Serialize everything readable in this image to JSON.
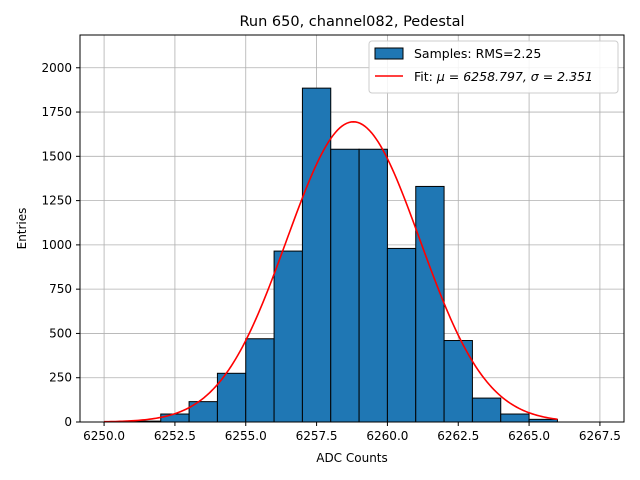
{
  "chart_data": {
    "type": "bar",
    "title": "Run 650, channel082, Pedestal",
    "xlabel": "ADC Counts",
    "ylabel": "Entries",
    "xlim": [
      6249.15,
      6268.35
    ],
    "ylim": [
      0,
      2185
    ],
    "grid": true,
    "legend_position": "top-right",
    "x_ticks": [
      6250.0,
      6252.5,
      6255.0,
      6257.5,
      6260.0,
      6262.5,
      6265.0,
      6267.5
    ],
    "x_tick_labels": [
      "6250.0",
      "6252.5",
      "6255.0",
      "6257.5",
      "6260.0",
      "6262.5",
      "6265.0",
      "6267.5"
    ],
    "y_ticks": [
      0,
      250,
      500,
      750,
      1000,
      1250,
      1500,
      1750,
      2000
    ],
    "y_tick_labels": [
      "0",
      "250",
      "500",
      "750",
      "1000",
      "1250",
      "1500",
      "1750",
      "2000"
    ],
    "histogram": {
      "name": "Samples: RMS=2.25",
      "color": "#1f77b4",
      "edge_color": "#000000",
      "bin_edges": [
        6250,
        6251,
        6252,
        6253,
        6254,
        6255,
        6256,
        6257,
        6258,
        6259,
        6260,
        6261,
        6262,
        6263,
        6264,
        6265,
        6266
      ],
      "values": [
        0,
        5,
        45,
        115,
        275,
        470,
        965,
        1885,
        1540,
        1540,
        980,
        1330,
        460,
        135,
        45,
        15
      ]
    },
    "fit": {
      "name_prefix": "Fit: ",
      "name_suffix": "μ = 6258.797, σ = 2.351",
      "mu": 6258.797,
      "sigma": 2.351,
      "amplitude": 1695,
      "x_range": [
        6250,
        6266
      ],
      "color": "#ff0000"
    }
  }
}
